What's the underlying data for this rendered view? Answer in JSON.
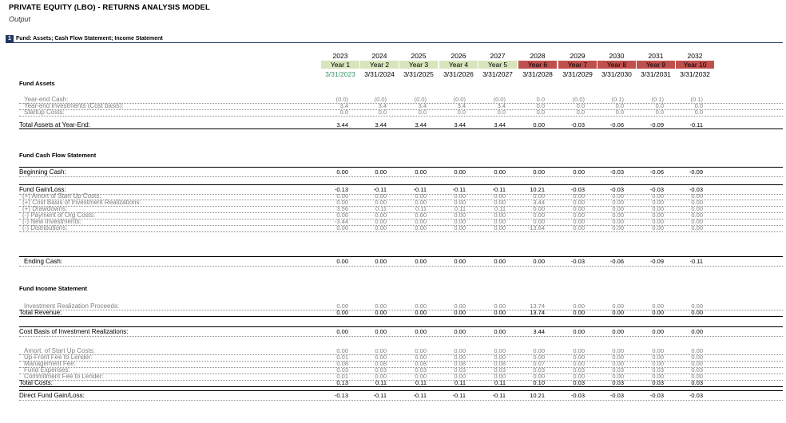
{
  "title": "PRIVATE EQUITY (LBO) - RETURNS ANALYSIS MODEL",
  "subtitle": "Output",
  "section": {
    "number": "1",
    "label": "Fund: Assets; Cash Flow Statement; Income Statement"
  },
  "colors": {
    "green_header": "#d8e4bc",
    "red_header": "#c0504d",
    "section_bar": "#1f3864",
    "green_date": "#339966"
  },
  "columns": [
    {
      "year": "2023",
      "label": "Year 1",
      "date": "3/31/2023",
      "style": "green"
    },
    {
      "year": "2024",
      "label": "Year 2",
      "date": "3/31/2024",
      "style": "green"
    },
    {
      "year": "2025",
      "label": "Year 3",
      "date": "3/31/2025",
      "style": "green"
    },
    {
      "year": "2026",
      "label": "Year 4",
      "date": "3/31/2026",
      "style": "green"
    },
    {
      "year": "2027",
      "label": "Year 5",
      "date": "3/31/2027",
      "style": "green"
    },
    {
      "year": "2028",
      "label": "Year 6",
      "date": "3/31/2028",
      "style": "red"
    },
    {
      "year": "2029",
      "label": "Year 7",
      "date": "3/31/2029",
      "style": "red"
    },
    {
      "year": "2030",
      "label": "Year 8",
      "date": "3/31/2030",
      "style": "red"
    },
    {
      "year": "2031",
      "label": "Year 9",
      "date": "3/31/2031",
      "style": "red"
    },
    {
      "year": "2032",
      "label": "Year 10",
      "date": "3/31/2032",
      "style": "red"
    }
  ],
  "rows": [
    {
      "kind": "header",
      "label": "Fund Assets"
    },
    {
      "kind": "gray",
      "label": "Year-end Cash:",
      "values": [
        "(0.0)",
        "(0.0)",
        "(0.0)",
        "(0.0)",
        "(0.0)",
        "0.0",
        "(0.0)",
        "(0.1)",
        "(0.1)",
        "(0.1)"
      ]
    },
    {
      "kind": "gray",
      "label": "Year-end Investments (Cost basis):",
      "values": [
        "3.4",
        "3.4",
        "3.4",
        "3.4",
        "3.4",
        "0.0",
        "0.0",
        "0.0",
        "0.0",
        "0.0"
      ]
    },
    {
      "kind": "gray",
      "label": "Startup Costs:",
      "values": [
        "0.0",
        "0.0",
        "0.0",
        "0.0",
        "0.0",
        "0.0",
        "0.0",
        "0.0",
        "0.0",
        "0.0"
      ]
    },
    {
      "kind": "total",
      "label": "Total Assets at Year-End:",
      "values": [
        "3.44",
        "3.44",
        "3.44",
        "3.44",
        "3.44",
        "0.00",
        "-0.03",
        "-0.06",
        "-0.09",
        "-0.11"
      ]
    },
    {
      "kind": "header",
      "label": "Fund Cash Flow Statement"
    },
    {
      "kind": "main",
      "label": "Beginning Cash:",
      "values": [
        "0.00",
        "0.00",
        "0.00",
        "0.00",
        "0.00",
        "0.00",
        "0.00",
        "-0.03",
        "-0.06",
        "-0.09"
      ]
    },
    {
      "kind": "main",
      "label": "Fund Gain/Loss:",
      "values": [
        "-0.13",
        "-0.11",
        "-0.11",
        "-0.11",
        "-0.11",
        "10.21",
        "-0.03",
        "-0.03",
        "-0.03",
        "-0.03"
      ]
    },
    {
      "kind": "gray",
      "label": "(+) Amort of Start Up Costs:",
      "values": [
        "0.00",
        "0.00",
        "0.00",
        "0.00",
        "0.00",
        "0.00",
        "0.00",
        "0.00",
        "0.00",
        "0.00"
      ]
    },
    {
      "kind": "gray",
      "label": "(+) Cost Basis of Investment Realizations:",
      "values": [
        "0.00",
        "0.00",
        "0.00",
        "0.00",
        "0.00",
        "3.44",
        "0.00",
        "0.00",
        "0.00",
        "0.00"
      ]
    },
    {
      "kind": "gray",
      "label": "(+) Drawdowns:",
      "values": [
        "3.56",
        "0.11",
        "0.11",
        "0.11",
        "0.11",
        "0.00",
        "0.00",
        "0.00",
        "0.00",
        "0.00"
      ]
    },
    {
      "kind": "gray",
      "label": "(-) Payment of Org Costs:",
      "values": [
        "0.00",
        "0.00",
        "0.00",
        "0.00",
        "0.00",
        "0.00",
        "0.00",
        "0.00",
        "0.00",
        "0.00"
      ]
    },
    {
      "kind": "gray",
      "label": "(-) New Investments:",
      "values": [
        "-3.44",
        "0.00",
        "0.00",
        "0.00",
        "0.00",
        "0.00",
        "0.00",
        "0.00",
        "0.00",
        "0.00"
      ]
    },
    {
      "kind": "gray",
      "label": "(-) Distributions:",
      "values": [
        "0.00",
        "0.00",
        "0.00",
        "0.00",
        "0.00",
        "-13.64",
        "0.00",
        "0.00",
        "0.00",
        "0.00"
      ]
    },
    {
      "kind": "main",
      "label": "Ending Cash:",
      "values": [
        "0.00",
        "0.00",
        "0.00",
        "0.00",
        "0.00",
        "0.00",
        "-0.03",
        "-0.06",
        "-0.09",
        "-0.11"
      ]
    },
    {
      "kind": "header",
      "label": "Fund Income Statement"
    },
    {
      "kind": "gray",
      "label": "Investment Realization Proceeds:",
      "values": [
        "0.00",
        "0.00",
        "0.00",
        "0.00",
        "0.00",
        "13.74",
        "0.00",
        "0.00",
        "0.00",
        "0.00"
      ]
    },
    {
      "kind": "total",
      "label": "Total Revenue:",
      "values": [
        "0.00",
        "0.00",
        "0.00",
        "0.00",
        "0.00",
        "13.74",
        "0.00",
        "0.00",
        "0.00",
        "0.00"
      ]
    },
    {
      "kind": "main",
      "label": "Cost Basis of Investment Realizations:",
      "values": [
        "0.00",
        "0.00",
        "0.00",
        "0.00",
        "0.00",
        "3.44",
        "0.00",
        "0.00",
        "0.00",
        "0.00"
      ]
    },
    {
      "kind": "gray",
      "label": "Amort. of Start Up Costs:",
      "values": [
        "0.00",
        "0.00",
        "0.00",
        "0.00",
        "0.00",
        "0.00",
        "0.00",
        "0.00",
        "0.00",
        "0.00"
      ]
    },
    {
      "kind": "gray",
      "label": "Up-Front Fee to Lender:",
      "values": [
        "0.01",
        "0.00",
        "0.00",
        "0.00",
        "0.00",
        "0.00",
        "0.00",
        "0.00",
        "0.00",
        "0.00"
      ]
    },
    {
      "kind": "gray",
      "label": "Management Fee:",
      "values": [
        "0.08",
        "0.08",
        "0.08",
        "0.08",
        "0.08",
        "0.07",
        "0.00",
        "0.00",
        "0.00",
        "0.00"
      ]
    },
    {
      "kind": "gray",
      "label": "Fund Expenses:",
      "values": [
        "0.03",
        "0.03",
        "0.03",
        "0.03",
        "0.03",
        "0.03",
        "0.03",
        "0.03",
        "0.03",
        "0.03"
      ]
    },
    {
      "kind": "gray",
      "label": "Commitment Fee to Lender:",
      "values": [
        "0.01",
        "0.00",
        "0.00",
        "0.00",
        "0.00",
        "0.00",
        "0.00",
        "0.00",
        "0.00",
        "0.00"
      ]
    },
    {
      "kind": "total",
      "label": "Total Costs:",
      "values": [
        "0.13",
        "0.11",
        "0.11",
        "0.11",
        "0.11",
        "0.10",
        "0.03",
        "0.03",
        "0.03",
        "0.03"
      ]
    },
    {
      "kind": "main",
      "label": "Direct Fund Gain/Loss:",
      "values": [
        "-0.13",
        "-0.11",
        "-0.11",
        "-0.11",
        "-0.11",
        "10.21",
        "-0.03",
        "-0.03",
        "-0.03",
        "-0.03"
      ]
    }
  ]
}
